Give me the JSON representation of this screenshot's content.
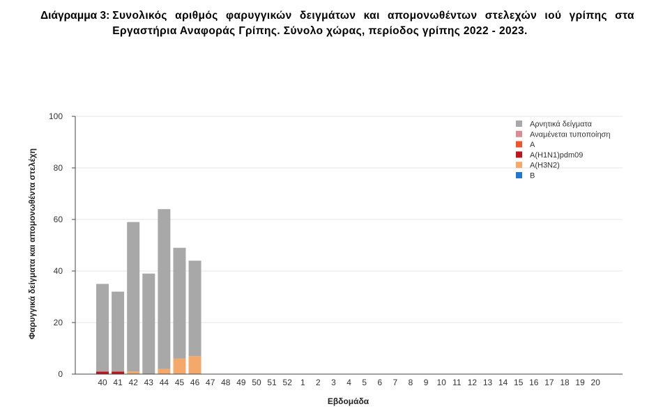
{
  "title_prefix": "Διάγραμμα 3:",
  "title_text": "Συνολικός αριθμός φαρυγγικών δειγμάτων και απομονωθέντων στελεχών ιού γρίπης στα Εργαστήρια Αναφοράς Γρίπης. Σύνολο χώρας, περίοδος γρίπης 2022 - 2023.",
  "chart_data": {
    "type": "bar",
    "stacked": true,
    "xlabel": "Εβδομάδα",
    "ylabel": "Φαρυγγικά δείγματα και απομονωθέντα στελέχη",
    "ylim": [
      0,
      100
    ],
    "yticks": [
      0,
      20,
      40,
      60,
      80,
      100
    ],
    "grid": true,
    "legend_position": "top-right",
    "categories": [
      "40",
      "41",
      "42",
      "43",
      "44",
      "45",
      "46",
      "47",
      "48",
      "49",
      "50",
      "51",
      "52",
      "1",
      "2",
      "3",
      "4",
      "5",
      "6",
      "7",
      "8",
      "9",
      "10",
      "11",
      "12",
      "13",
      "14",
      "15",
      "16",
      "17",
      "18",
      "19",
      "20"
    ],
    "series": [
      {
        "name": "Αρνητικά δείγματα",
        "color": "#a8a8a8",
        "values": [
          34,
          31,
          58,
          39,
          62,
          43,
          37,
          0,
          0,
          0,
          0,
          0,
          0,
          0,
          0,
          0,
          0,
          0,
          0,
          0,
          0,
          0,
          0,
          0,
          0,
          0,
          0,
          0,
          0,
          0,
          0,
          0,
          0
        ]
      },
      {
        "name": "Αναμένεται τυποποίηση",
        "color": "#d98c93",
        "values": [
          0,
          0,
          0,
          0,
          0,
          0,
          0,
          0,
          0,
          0,
          0,
          0,
          0,
          0,
          0,
          0,
          0,
          0,
          0,
          0,
          0,
          0,
          0,
          0,
          0,
          0,
          0,
          0,
          0,
          0,
          0,
          0,
          0
        ]
      },
      {
        "name": "A",
        "color": "#f0542a",
        "values": [
          0,
          0,
          0,
          0,
          0,
          0,
          0,
          0,
          0,
          0,
          0,
          0,
          0,
          0,
          0,
          0,
          0,
          0,
          0,
          0,
          0,
          0,
          0,
          0,
          0,
          0,
          0,
          0,
          0,
          0,
          0,
          0,
          0
        ]
      },
      {
        "name": "A(H1N1)pdm09",
        "color": "#c0141c",
        "values": [
          1,
          1,
          0,
          0,
          0,
          0,
          0,
          0,
          0,
          0,
          0,
          0,
          0,
          0,
          0,
          0,
          0,
          0,
          0,
          0,
          0,
          0,
          0,
          0,
          0,
          0,
          0,
          0,
          0,
          0,
          0,
          0,
          0
        ]
      },
      {
        "name": "A(H3N2)",
        "color": "#f4a86a",
        "values": [
          0,
          0,
          1,
          0,
          2,
          6,
          7,
          0,
          0,
          0,
          0,
          0,
          0,
          0,
          0,
          0,
          0,
          0,
          0,
          0,
          0,
          0,
          0,
          0,
          0,
          0,
          0,
          0,
          0,
          0,
          0,
          0,
          0
        ]
      },
      {
        "name": "B",
        "color": "#1f78d1",
        "values": [
          0,
          0,
          0,
          0,
          0,
          0,
          0,
          0,
          0,
          0,
          0,
          0,
          0,
          0,
          0,
          0,
          0,
          0,
          0,
          0,
          0,
          0,
          0,
          0,
          0,
          0,
          0,
          0,
          0,
          0,
          0,
          0,
          0
        ]
      }
    ]
  }
}
